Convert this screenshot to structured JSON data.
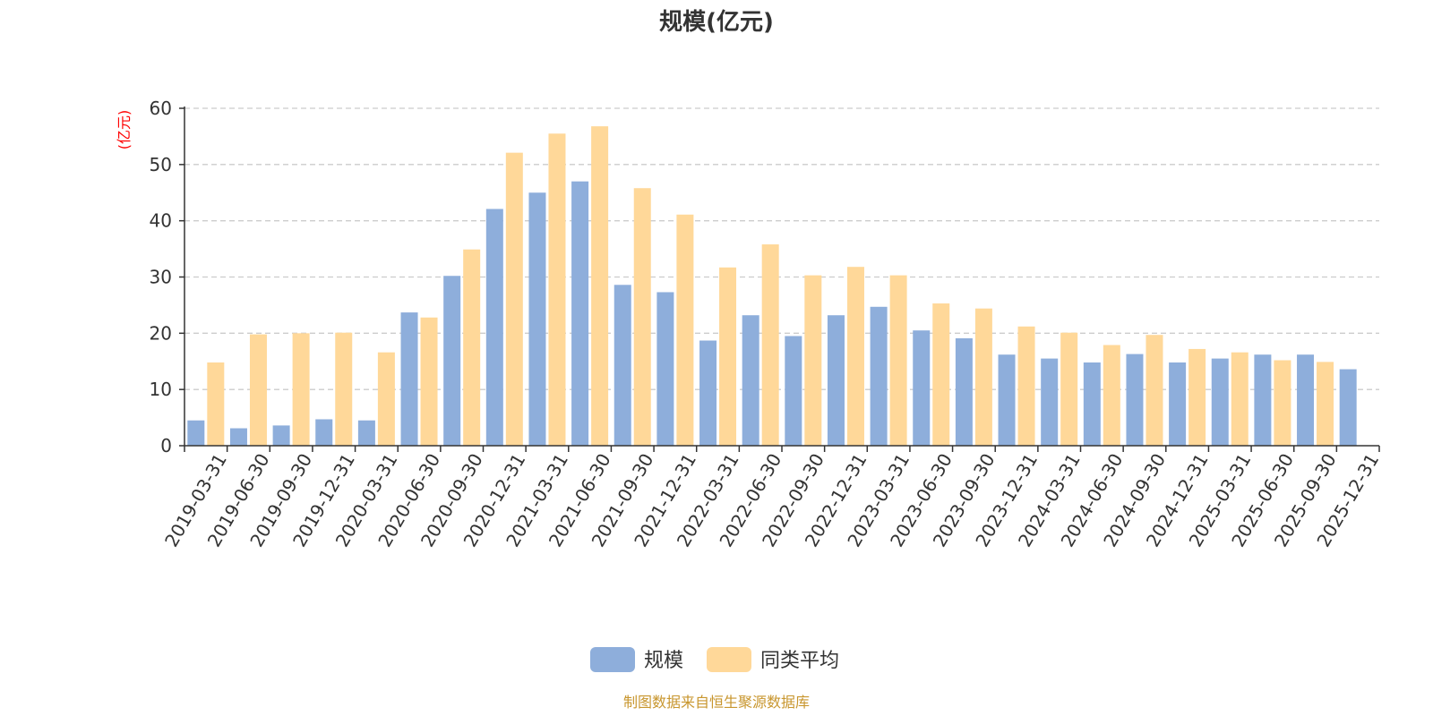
{
  "chart_data": {
    "type": "bar",
    "title": "规模(亿元)",
    "ylabel": "(亿元)",
    "xlabel": "",
    "ylim": [
      0,
      60
    ],
    "yticks": [
      0,
      10,
      20,
      30,
      40,
      50,
      60
    ],
    "grid": true,
    "legend_position": "bottom",
    "categories": [
      "2019-03-31",
      "2019-06-30",
      "2019-09-30",
      "2019-12-31",
      "2020-03-31",
      "2020-06-30",
      "2020-09-30",
      "2020-12-31",
      "2021-03-31",
      "2021-06-30",
      "2021-09-30",
      "2021-12-31",
      "2022-03-31",
      "2022-06-30",
      "2022-09-30",
      "2022-12-31",
      "2023-03-31",
      "2023-06-30",
      "2023-09-30",
      "2023-12-31",
      "2024-03-31",
      "2024-06-30",
      "2024-09-30",
      "2024-12-31",
      "2025-03-31",
      "2025-06-30",
      "2025-09-30",
      "2025-12-31"
    ],
    "series": [
      {
        "name": "规模",
        "color": "#8eaedb",
        "values": [
          4.5,
          3.1,
          3.6,
          4.7,
          4.5,
          23.7,
          30.2,
          42.1,
          45.0,
          47.0,
          28.6,
          27.3,
          18.7,
          23.2,
          19.5,
          23.2,
          24.7,
          20.5,
          19.1,
          16.2,
          15.5,
          14.8,
          16.3,
          14.8,
          15.5,
          16.2,
          16.2,
          13.6
        ]
      },
      {
        "name": "同类平均",
        "color": "#ffd899",
        "values": [
          14.8,
          19.8,
          20.0,
          20.1,
          16.6,
          22.8,
          34.9,
          52.1,
          55.5,
          56.8,
          45.8,
          41.1,
          31.7,
          35.8,
          30.3,
          31.8,
          30.3,
          25.3,
          24.4,
          21.2,
          20.1,
          17.9,
          19.7,
          17.2,
          16.6,
          15.2,
          14.9,
          null
        ]
      }
    ]
  },
  "source": "制图数据来自恒生聚源数据库",
  "colors": {
    "axis": "#333333",
    "grid": "#cccccc",
    "ylabel": "#ff0000",
    "source": "#c8962e"
  }
}
